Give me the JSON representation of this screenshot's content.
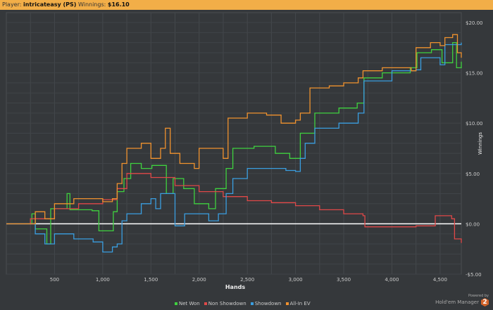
{
  "header": {
    "player_label": "Player:",
    "player": "intricateasy (PS)",
    "winnings_label": "Winnings:",
    "winnings": "$16.10"
  },
  "logo": {
    "powered": "Powered by",
    "name": "Hold'em Manager",
    "badge": "2"
  },
  "chart_data": {
    "type": "line",
    "xlabel": "Hands",
    "ylabel": "Winnings",
    "xlim": [
      0,
      4720
    ],
    "ylim": [
      -5,
      20
    ],
    "xticks": [
      500,
      1000,
      1500,
      2000,
      2500,
      3000,
      3500,
      4000,
      4500
    ],
    "xtick_labels": [
      "500",
      "1,000",
      "1,500",
      "2,000",
      "2,500",
      "3,000",
      "3,500",
      "4,000",
      "4,500"
    ],
    "yticks": [
      20,
      15,
      10,
      5,
      0,
      -5
    ],
    "ytick_labels": [
      "$20.00",
      "$15.00",
      "$10.00",
      "$5.00",
      "$0.00",
      "-$5.00"
    ],
    "grid": true,
    "legend": "bottom",
    "series": [
      {
        "name": "Net Won",
        "color": "#3fd13f",
        "x": [
          0,
          200,
          265,
          300,
          375,
          420,
          460,
          520,
          630,
          660,
          890,
          960,
          1110,
          1150,
          1220,
          1290,
          1400,
          1510,
          1660,
          1730,
          1840,
          1950,
          2100,
          2170,
          2280,
          2350,
          2570,
          2790,
          2940,
          3050,
          3200,
          3450,
          3640,
          3710,
          3900,
          4190,
          4260,
          4410,
          4520,
          4630,
          4670,
          4720
        ],
        "y": [
          0,
          0,
          1.0,
          -0.5,
          -0.5,
          -2,
          1.5,
          1.5,
          3,
          1.4,
          1.3,
          -0.7,
          1.2,
          3.2,
          4.5,
          6,
          5.5,
          5.8,
          3.0,
          4.5,
          3.5,
          2,
          1.5,
          3.5,
          5.5,
          7.5,
          7.7,
          7.0,
          6.5,
          9.0,
          11.0,
          11.5,
          12.0,
          14.5,
          15.0,
          15.5,
          17.0,
          17.3,
          16.0,
          18.0,
          15.5,
          16.1
        ]
      },
      {
        "name": "Non Showdown",
        "color": "#e04848",
        "x": [
          0,
          250,
          500,
          750,
          1000,
          1150,
          1250,
          1500,
          1750,
          2000,
          2250,
          2500,
          2750,
          3000,
          3250,
          3500,
          3700,
          3720,
          4000,
          4250,
          4450,
          4620,
          4650,
          4720
        ],
        "y": [
          0,
          0.5,
          1.5,
          2.0,
          2.4,
          3.5,
          5.0,
          4.6,
          3.8,
          3.2,
          2.7,
          2.3,
          2.1,
          1.8,
          1.4,
          1.0,
          0.8,
          -0.3,
          -0.3,
          -0.2,
          0.8,
          0.5,
          -1.5,
          -1.9
        ]
      },
      {
        "name": "Showdown",
        "color": "#3a9ee0",
        "x": [
          0,
          300,
          400,
          500,
          700,
          900,
          1000,
          1100,
          1150,
          1200,
          1250,
          1400,
          1500,
          1550,
          1600,
          1750,
          1850,
          2000,
          2100,
          2200,
          2280,
          2350,
          2500,
          2900,
          3000,
          3050,
          3100,
          3200,
          3450,
          3650,
          3710,
          4000,
          4250,
          4300,
          4500,
          4550,
          4720
        ],
        "y": [
          0,
          -1,
          -2,
          -1,
          -1.5,
          -1.8,
          -2.8,
          -2.3,
          -2,
          0.3,
          1,
          2,
          2.5,
          1.5,
          3.0,
          -0.2,
          1,
          1,
          0.3,
          1,
          3,
          4.5,
          5.5,
          5.3,
          5.2,
          6.5,
          8,
          9.5,
          10,
          11,
          14.2,
          15.2,
          15.3,
          16.5,
          15.8,
          17.8,
          18.0
        ]
      },
      {
        "name": "All-In EV",
        "color": "#f0922e",
        "x": [
          0,
          300,
          400,
          500,
          700,
          1000,
          1100,
          1150,
          1200,
          1250,
          1400,
          1500,
          1600,
          1650,
          1700,
          1800,
          1950,
          2000,
          2150,
          2250,
          2300,
          2500,
          2700,
          2850,
          3000,
          3050,
          3150,
          3350,
          3500,
          3650,
          3700,
          3900,
          4200,
          4250,
          4400,
          4500,
          4550,
          4630,
          4680,
          4720
        ],
        "y": [
          0,
          1.2,
          0.5,
          2,
          2.5,
          2.2,
          2.5,
          4,
          6,
          7.5,
          8,
          6.5,
          7.5,
          9.5,
          7,
          6,
          5.5,
          7.5,
          7.5,
          6.5,
          10.5,
          11,
          10.8,
          10.0,
          10.3,
          11,
          13.5,
          13.7,
          14.0,
          14.5,
          15.2,
          15.5,
          15.2,
          17.5,
          18,
          17.7,
          18.5,
          18.8,
          17,
          16.5
        ]
      }
    ]
  }
}
